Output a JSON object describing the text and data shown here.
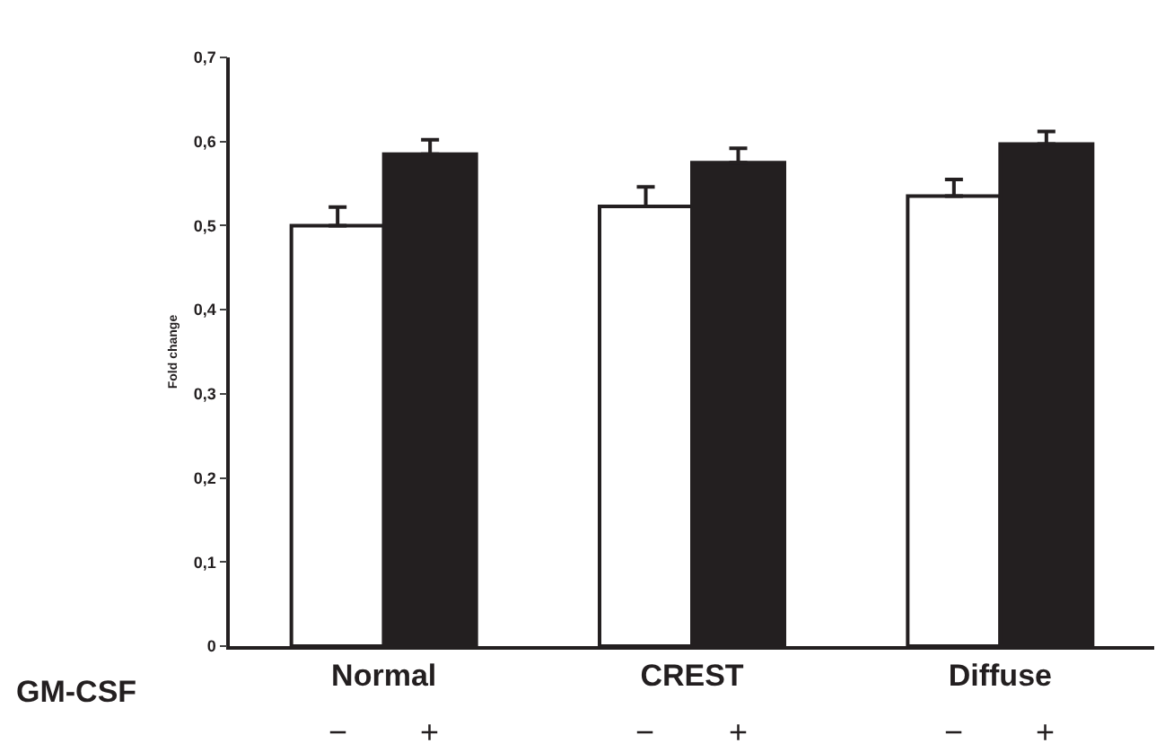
{
  "chart_data": {
    "type": "bar",
    "ylabel": "Fold change",
    "xlabel": "GM-CSF",
    "categories": [
      "Normal",
      "CREST",
      "Diffuse"
    ],
    "series": [
      {
        "name": "−",
        "color": "#ffffff",
        "values": [
          0.5,
          0.523,
          0.535
        ],
        "errors": [
          [
            0.5,
            0.522
          ],
          [
            0.523,
            0.546
          ],
          [
            0.535,
            0.555
          ]
        ]
      },
      {
        "name": "+",
        "color": "#231f20",
        "values": [
          0.585,
          0.575,
          0.597
        ],
        "errors": [
          [
            0.585,
            0.602
          ],
          [
            0.575,
            0.592
          ],
          [
            0.597,
            0.612
          ]
        ]
      }
    ],
    "ylim": [
      0,
      0.7
    ],
    "yticks": [
      0,
      {
        "value": 0.1,
        "label": "0,1"
      },
      {
        "value": 0.2,
        "label": "0,2"
      },
      {
        "value": 0.3,
        "label": "0,3"
      },
      {
        "value": 0.4,
        "label": "0,4"
      },
      {
        "value": 0.5,
        "label": "0,5"
      },
      {
        "value": 0.6,
        "label": "0,6"
      },
      {
        "value": 0.7,
        "label": "0,7"
      }
    ],
    "legend": false
  }
}
